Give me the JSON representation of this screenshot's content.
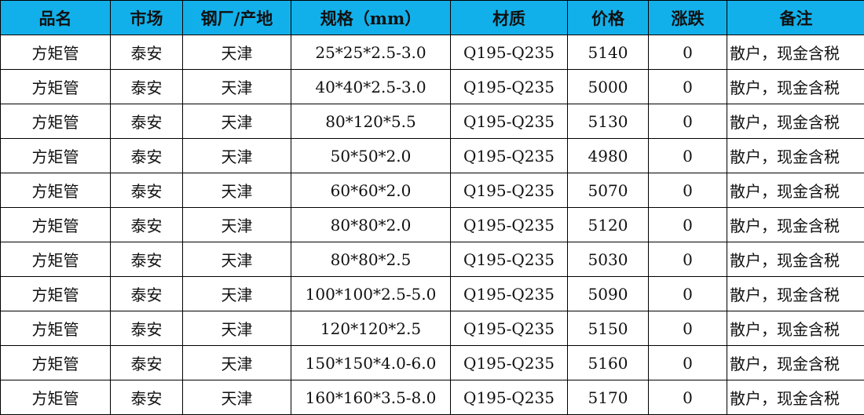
{
  "header_color": "#12b0ea",
  "columns": [
    "品名",
    "市场",
    "钢厂/产地",
    "规格（mm）",
    "材质",
    "价格",
    "涨跌",
    "备注"
  ],
  "rows": [
    [
      "方矩管",
      "泰安",
      "天津",
      "25*25*2.5-3.0",
      "Q195-Q235",
      "5140",
      "0",
      "散户，现金含税"
    ],
    [
      "方矩管",
      "泰安",
      "天津",
      "40*40*2.5-3.0",
      "Q195-Q235",
      "5000",
      "0",
      "散户，现金含税"
    ],
    [
      "方矩管",
      "泰安",
      "天津",
      "80*120*5.5",
      "Q195-Q235",
      "5130",
      "0",
      "散户，现金含税"
    ],
    [
      "方矩管",
      "泰安",
      "天津",
      "50*50*2.0",
      "Q195-Q235",
      "4980",
      "0",
      "散户，现金含税"
    ],
    [
      "方矩管",
      "泰安",
      "天津",
      "60*60*2.0",
      "Q195-Q235",
      "5070",
      "0",
      "散户，现金含税"
    ],
    [
      "方矩管",
      "泰安",
      "天津",
      "80*80*2.0",
      "Q195-Q235",
      "5120",
      "0",
      "散户，现金含税"
    ],
    [
      "方矩管",
      "泰安",
      "天津",
      "80*80*2.5",
      "Q195-Q235",
      "5030",
      "0",
      "散户，现金含税"
    ],
    [
      "方矩管",
      "泰安",
      "天津",
      "100*100*2.5-5.0",
      "Q195-Q235",
      "5090",
      "0",
      "散户，现金含税"
    ],
    [
      "方矩管",
      "泰安",
      "天津",
      "120*120*2.5",
      "Q195-Q235",
      "5150",
      "0",
      "散户，现金含税"
    ],
    [
      "方矩管",
      "泰安",
      "天津",
      "150*150*4.0-6.0",
      "Q195-Q235",
      "5160",
      "0",
      "散户，现金含税"
    ],
    [
      "方矩管",
      "泰安",
      "天津",
      "160*160*3.5-8.0",
      "Q195-Q235",
      "5170",
      "0",
      "散户，现金含税"
    ]
  ]
}
